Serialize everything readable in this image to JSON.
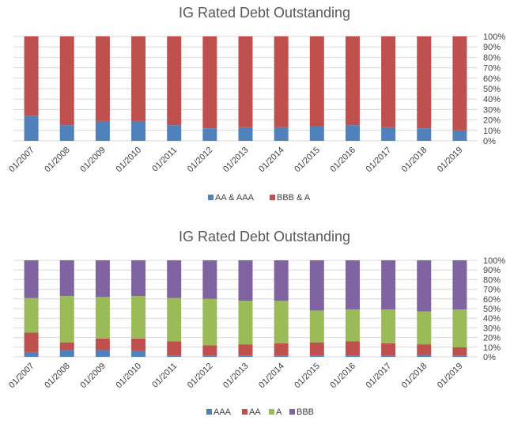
{
  "chart_data": [
    {
      "type": "bar",
      "stacked": "percent",
      "title": "IG Rated Debt Outstanding",
      "categories": [
        "01/2007",
        "01/2008",
        "01/2009",
        "01/2010",
        "01/2011",
        "01/2012",
        "01/2013",
        "01/2014",
        "01/2015",
        "01/2016",
        "01/2017",
        "01/2018",
        "01/2019"
      ],
      "series": [
        {
          "name": "AA & AAA",
          "color": "#4f81bd",
          "values": [
            24,
            15,
            19,
            19,
            15,
            12,
            13,
            13,
            14,
            15,
            13,
            12,
            10
          ]
        },
        {
          "name": "BBB & A",
          "color": "#c0504d",
          "values": [
            76,
            85,
            81,
            81,
            85,
            88,
            87,
            87,
            86,
            85,
            87,
            88,
            90
          ]
        }
      ],
      "y_ticks": [
        "0%",
        "10%",
        "20%",
        "30%",
        "40%",
        "50%",
        "60%",
        "70%",
        "80%",
        "90%",
        "100%"
      ],
      "ylim": [
        0,
        100
      ],
      "grid": true,
      "legend": "bottom"
    },
    {
      "type": "bar",
      "stacked": "percent",
      "title": "IG Rated Debt Outstanding",
      "categories": [
        "01/2007",
        "01/2008",
        "01/2009",
        "01/2010",
        "01/2011",
        "01/2012",
        "01/2013",
        "01/2014",
        "01/2015",
        "01/2016",
        "01/2017",
        "01/2018",
        "01/2019"
      ],
      "series": [
        {
          "name": "AAA",
          "color": "#4f81bd",
          "values": [
            5,
            7,
            7,
            6,
            1,
            1,
            1,
            1,
            1,
            1,
            1,
            2,
            1
          ]
        },
        {
          "name": "AA",
          "color": "#c0504d",
          "values": [
            20,
            8,
            12,
            13,
            15,
            11,
            12,
            13,
            14,
            15,
            13,
            11,
            9
          ]
        },
        {
          "name": "A",
          "color": "#9bbb59",
          "values": [
            36,
            48,
            43,
            44,
            45,
            48,
            45,
            44,
            33,
            33,
            35,
            34,
            39
          ]
        },
        {
          "name": "BBB",
          "color": "#8064a2",
          "values": [
            39,
            37,
            38,
            37,
            39,
            40,
            42,
            42,
            52,
            51,
            51,
            53,
            51
          ]
        }
      ],
      "y_ticks": [
        "0%",
        "10%",
        "20%",
        "30%",
        "40%",
        "50%",
        "60%",
        "70%",
        "80%",
        "90%",
        "100%"
      ],
      "ylim": [
        0,
        100
      ],
      "grid": true,
      "legend": "bottom"
    }
  ]
}
